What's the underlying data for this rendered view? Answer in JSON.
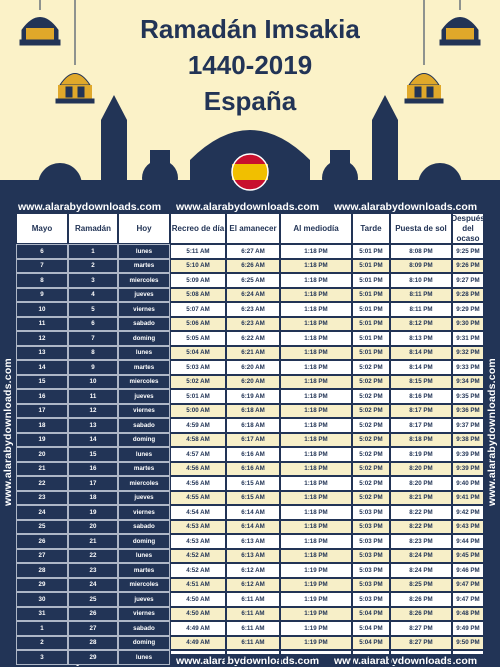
{
  "header": {
    "title_line1": "Ramadán Imsakia",
    "title_line2": "1440-2019",
    "title_line3": "España"
  },
  "watermark": "www.alarabydownloads.com",
  "colors": {
    "navy": "#223456",
    "cream": "#fbf2c8",
    "gold": "#e0a82a",
    "flag_red": "#c8102e",
    "flag_yellow": "#f1bf00"
  },
  "table": {
    "headers": [
      "Mayo",
      "Ramadán",
      "Hoy",
      "Recreo de día",
      "El amanecer",
      "Al mediodía",
      "Tarde",
      "Puesta de sol",
      "Después del ocaso"
    ],
    "rows": [
      [
        "6",
        "1",
        "lunes",
        "5:11 AM",
        "6:27 AM",
        "1:18 PM",
        "5:01 PM",
        "8:08 PM",
        "9:25 PM"
      ],
      [
        "7",
        "2",
        "martes",
        "5:10 AM",
        "6:26 AM",
        "1:18 PM",
        "5:01 PM",
        "8:09 PM",
        "9:26 PM"
      ],
      [
        "8",
        "3",
        "miercoles",
        "5:09 AM",
        "6:25 AM",
        "1:18 PM",
        "5:01 PM",
        "8:10 PM",
        "9:27 PM"
      ],
      [
        "9",
        "4",
        "jueves",
        "5:08 AM",
        "6:24 AM",
        "1:18 PM",
        "5:01 PM",
        "8:11 PM",
        "9:28 PM"
      ],
      [
        "10",
        "5",
        "viernes",
        "5:07 AM",
        "6:23 AM",
        "1:18 PM",
        "5:01 PM",
        "8:11 PM",
        "9:29 PM"
      ],
      [
        "11",
        "6",
        "sabado",
        "5:06 AM",
        "6:23 AM",
        "1:18 PM",
        "5:01 PM",
        "8:12 PM",
        "9:30 PM"
      ],
      [
        "12",
        "7",
        "doming",
        "5:05 AM",
        "6:22 AM",
        "1:18 PM",
        "5:01 PM",
        "8:13 PM",
        "9:31 PM"
      ],
      [
        "13",
        "8",
        "lunes",
        "5:04 AM",
        "6:21 AM",
        "1:18 PM",
        "5:01 PM",
        "8:14 PM",
        "9:32 PM"
      ],
      [
        "14",
        "9",
        "martes",
        "5:03 AM",
        "6:20 AM",
        "1:18 PM",
        "5:02 PM",
        "8:14 PM",
        "9:33 PM"
      ],
      [
        "15",
        "10",
        "miercoles",
        "5:02 AM",
        "6:20 AM",
        "1:18 PM",
        "5:02 PM",
        "8:15 PM",
        "9:34 PM"
      ],
      [
        "16",
        "11",
        "jueves",
        "5:01 AM",
        "6:19 AM",
        "1:18 PM",
        "5:02 PM",
        "8:16 PM",
        "9:35 PM"
      ],
      [
        "17",
        "12",
        "viernes",
        "5:00 AM",
        "6:18 AM",
        "1:18 PM",
        "5:02 PM",
        "8:17 PM",
        "9:36 PM"
      ],
      [
        "18",
        "13",
        "sabado",
        "4:59 AM",
        "6:18 AM",
        "1:18 PM",
        "5:02 PM",
        "8:17 PM",
        "9:37 PM"
      ],
      [
        "19",
        "14",
        "doming",
        "4:58 AM",
        "6:17 AM",
        "1:18 PM",
        "5:02 PM",
        "8:18 PM",
        "9:38 PM"
      ],
      [
        "20",
        "15",
        "lunes",
        "4:57 AM",
        "6:16 AM",
        "1:18 PM",
        "5:02 PM",
        "8:19 PM",
        "9:39 PM"
      ],
      [
        "21",
        "16",
        "martes",
        "4:56 AM",
        "6:16 AM",
        "1:18 PM",
        "5:02 PM",
        "8:20 PM",
        "9:39 PM"
      ],
      [
        "22",
        "17",
        "miercoles",
        "4:56 AM",
        "6:15 AM",
        "1:18 PM",
        "5:02 PM",
        "8:20 PM",
        "9:40 PM"
      ],
      [
        "23",
        "18",
        "jueves",
        "4:55 AM",
        "6:15 AM",
        "1:18 PM",
        "5:02 PM",
        "8:21 PM",
        "9:41 PM"
      ],
      [
        "24",
        "19",
        "viernes",
        "4:54 AM",
        "6:14 AM",
        "1:18 PM",
        "5:03 PM",
        "8:22 PM",
        "9:42 PM"
      ],
      [
        "25",
        "20",
        "sabado",
        "4:53 AM",
        "6:14 AM",
        "1:18 PM",
        "5:03 PM",
        "8:22 PM",
        "9:43 PM"
      ],
      [
        "26",
        "21",
        "doming",
        "4:53 AM",
        "6:13 AM",
        "1:18 PM",
        "5:03 PM",
        "8:23 PM",
        "9:44 PM"
      ],
      [
        "27",
        "22",
        "lunes",
        "4:52 AM",
        "6:13 AM",
        "1:18 PM",
        "5:03 PM",
        "8:24 PM",
        "9:45 PM"
      ],
      [
        "28",
        "23",
        "martes",
        "4:52 AM",
        "6:12 AM",
        "1:19 PM",
        "5:03 PM",
        "8:24 PM",
        "9:46 PM"
      ],
      [
        "29",
        "24",
        "miercoles",
        "4:51 AM",
        "6:12 AM",
        "1:19 PM",
        "5:03 PM",
        "8:25 PM",
        "9:47 PM"
      ],
      [
        "30",
        "25",
        "jueves",
        "4:50 AM",
        "6:11 AM",
        "1:19 PM",
        "5:03 PM",
        "8:26 PM",
        "9:47 PM"
      ],
      [
        "31",
        "26",
        "viernes",
        "4:50 AM",
        "6:11 AM",
        "1:19 PM",
        "5:04 PM",
        "8:26 PM",
        "9:48 PM"
      ],
      [
        "1",
        "27",
        "sabado",
        "4:49 AM",
        "6:11 AM",
        "1:19 PM",
        "5:04 PM",
        "8:27 PM",
        "9:49 PM"
      ],
      [
        "2",
        "28",
        "doming",
        "4:49 AM",
        "6:11 AM",
        "1:19 PM",
        "5:04 PM",
        "8:27 PM",
        "9:50 PM"
      ],
      [
        "3",
        "29",
        "lunes",
        "4:49 AM",
        "6:10 AM",
        "1:19 PM",
        "5:04 PM",
        "8:28 PM",
        "9:50 PM"
      ]
    ]
  }
}
